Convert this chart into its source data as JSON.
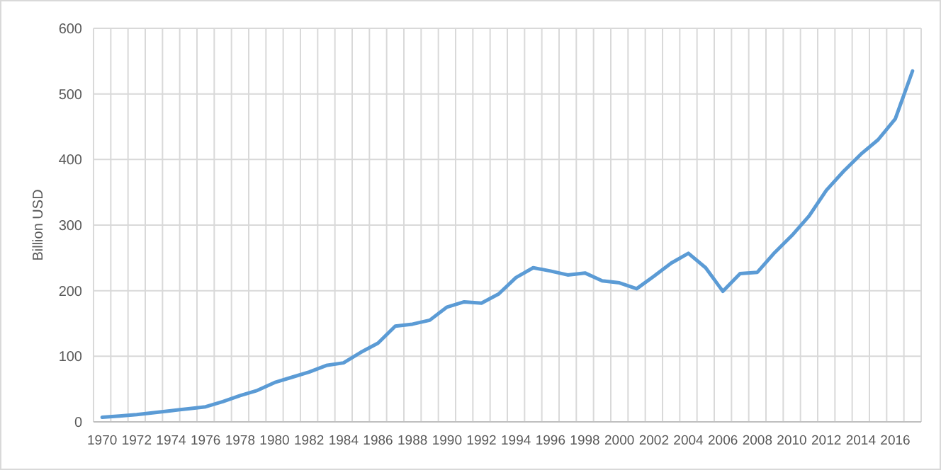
{
  "chart_data": {
    "type": "line",
    "ylabel": "Billion USD",
    "categories": [
      "1970",
      null,
      "1972",
      null,
      "1974",
      null,
      "1976",
      null,
      "1978",
      null,
      "1980",
      null,
      "1982",
      null,
      "1984",
      null,
      "1986",
      null,
      "1988",
      null,
      "1990",
      null,
      "1992",
      null,
      "1994",
      null,
      "1996",
      null,
      "1998",
      null,
      "2000",
      null,
      "2002",
      null,
      "2004",
      null,
      "2006",
      null,
      "2008",
      null,
      "2010",
      null,
      "2012",
      null,
      "2014",
      null,
      "2016",
      null
    ],
    "series": [
      {
        "color": "#5b9bd5",
        "values": [
          7,
          9,
          11,
          14,
          17,
          20,
          23,
          31,
          40,
          48,
          60,
          68,
          76,
          86,
          90,
          106,
          120,
          146,
          149,
          155,
          175,
          183,
          181,
          195,
          220,
          235,
          230,
          224,
          227,
          215,
          212,
          203,
          222,
          242,
          257,
          235,
          199,
          226,
          228,
          258,
          284,
          314,
          353,
          382,
          408,
          430,
          462,
          535
        ]
      }
    ],
    "ylim": [
      0,
      600
    ],
    "yticks": [
      0,
      100,
      200,
      300,
      400,
      500,
      600
    ],
    "grid": true,
    "marker": "none",
    "line_style": "solid"
  }
}
